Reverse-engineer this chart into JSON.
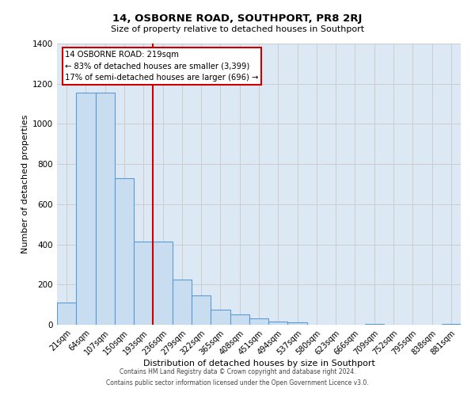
{
  "title": "14, OSBORNE ROAD, SOUTHPORT, PR8 2RJ",
  "subtitle": "Size of property relative to detached houses in Southport",
  "xlabel": "Distribution of detached houses by size in Southport",
  "ylabel": "Number of detached properties",
  "categories": [
    "21sqm",
    "64sqm",
    "107sqm",
    "150sqm",
    "193sqm",
    "236sqm",
    "279sqm",
    "322sqm",
    "365sqm",
    "408sqm",
    "451sqm",
    "494sqm",
    "537sqm",
    "580sqm",
    "623sqm",
    "666sqm",
    "709sqm",
    "752sqm",
    "795sqm",
    "838sqm",
    "881sqm"
  ],
  "values": [
    110,
    1155,
    1155,
    730,
    415,
    415,
    225,
    145,
    75,
    50,
    30,
    15,
    10,
    0,
    0,
    0,
    5,
    0,
    0,
    0,
    2
  ],
  "bar_color": "#c8ddf0",
  "bar_edge_color": "#5b9bd5",
  "vline_x_index": 4.5,
  "vline_color": "#cc0000",
  "annotation_text_line1": "14 OSBORNE ROAD: 219sqm",
  "annotation_text_line2": "← 83% of detached houses are smaller (3,399)",
  "annotation_text_line3": "17% of semi-detached houses are larger (696) →",
  "annotation_box_color": "#cc0000",
  "annotation_fill": "white",
  "ylim": [
    0,
    1400
  ],
  "yticks": [
    0,
    200,
    400,
    600,
    800,
    1000,
    1200,
    1400
  ],
  "grid_color": "#c8c8c8",
  "background_color": "#dce9f5",
  "footer_line1": "Contains HM Land Registry data © Crown copyright and database right 2024.",
  "footer_line2": "Contains public sector information licensed under the Open Government Licence v3.0."
}
